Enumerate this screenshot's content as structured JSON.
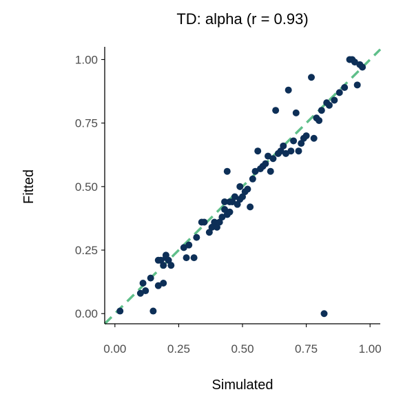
{
  "chart_data": {
    "type": "scatter",
    "title": "TD: alpha (r = 0.93)",
    "xlabel": "Simulated",
    "ylabel": "Fitted",
    "xlim": [
      -0.04,
      1.04
    ],
    "ylim": [
      -0.04,
      1.05
    ],
    "x_ticks": [
      0.0,
      0.25,
      0.5,
      0.75,
      1.0
    ],
    "x_tick_labels": [
      "0.00",
      "0.25",
      "0.50",
      "0.75",
      "1.00"
    ],
    "y_ticks": [
      0.0,
      0.25,
      0.5,
      0.75,
      1.0
    ],
    "y_tick_labels": [
      "0.00",
      "0.25",
      "0.50",
      "0.75",
      "1.00"
    ],
    "grid": false,
    "reference_line": {
      "intercept": 0,
      "slope": 1,
      "style": "dashed"
    },
    "colors": {
      "points": "#0d2f57",
      "reference_line": "#5fbf8a"
    },
    "points": [
      {
        "x": 0.02,
        "y": 0.01
      },
      {
        "x": 0.1,
        "y": 0.08
      },
      {
        "x": 0.11,
        "y": 0.12
      },
      {
        "x": 0.12,
        "y": 0.09
      },
      {
        "x": 0.14,
        "y": 0.14
      },
      {
        "x": 0.15,
        "y": 0.01
      },
      {
        "x": 0.17,
        "y": 0.11
      },
      {
        "x": 0.17,
        "y": 0.21
      },
      {
        "x": 0.18,
        "y": 0.21
      },
      {
        "x": 0.19,
        "y": 0.12
      },
      {
        "x": 0.19,
        "y": 0.19
      },
      {
        "x": 0.2,
        "y": 0.22
      },
      {
        "x": 0.2,
        "y": 0.23
      },
      {
        "x": 0.21,
        "y": 0.21
      },
      {
        "x": 0.22,
        "y": 0.19
      },
      {
        "x": 0.27,
        "y": 0.26
      },
      {
        "x": 0.28,
        "y": 0.22
      },
      {
        "x": 0.29,
        "y": 0.27
      },
      {
        "x": 0.31,
        "y": 0.22
      },
      {
        "x": 0.32,
        "y": 0.3
      },
      {
        "x": 0.34,
        "y": 0.36
      },
      {
        "x": 0.35,
        "y": 0.36
      },
      {
        "x": 0.37,
        "y": 0.32
      },
      {
        "x": 0.38,
        "y": 0.34
      },
      {
        "x": 0.39,
        "y": 0.36
      },
      {
        "x": 0.4,
        "y": 0.34
      },
      {
        "x": 0.41,
        "y": 0.36
      },
      {
        "x": 0.42,
        "y": 0.38
      },
      {
        "x": 0.43,
        "y": 0.41
      },
      {
        "x": 0.43,
        "y": 0.44
      },
      {
        "x": 0.44,
        "y": 0.39
      },
      {
        "x": 0.44,
        "y": 0.56
      },
      {
        "x": 0.45,
        "y": 0.4
      },
      {
        "x": 0.45,
        "y": 0.44
      },
      {
        "x": 0.46,
        "y": 0.44
      },
      {
        "x": 0.47,
        "y": 0.46
      },
      {
        "x": 0.48,
        "y": 0.43
      },
      {
        "x": 0.49,
        "y": 0.45
      },
      {
        "x": 0.49,
        "y": 0.5
      },
      {
        "x": 0.5,
        "y": 0.46
      },
      {
        "x": 0.51,
        "y": 0.48
      },
      {
        "x": 0.52,
        "y": 0.49
      },
      {
        "x": 0.53,
        "y": 0.42
      },
      {
        "x": 0.54,
        "y": 0.53
      },
      {
        "x": 0.55,
        "y": 0.56
      },
      {
        "x": 0.56,
        "y": 0.64
      },
      {
        "x": 0.57,
        "y": 0.57
      },
      {
        "x": 0.58,
        "y": 0.58
      },
      {
        "x": 0.59,
        "y": 0.59
      },
      {
        "x": 0.6,
        "y": 0.62
      },
      {
        "x": 0.61,
        "y": 0.56
      },
      {
        "x": 0.62,
        "y": 0.61
      },
      {
        "x": 0.63,
        "y": 0.8
      },
      {
        "x": 0.64,
        "y": 0.63
      },
      {
        "x": 0.65,
        "y": 0.64
      },
      {
        "x": 0.66,
        "y": 0.66
      },
      {
        "x": 0.67,
        "y": 0.63
      },
      {
        "x": 0.68,
        "y": 0.88
      },
      {
        "x": 0.69,
        "y": 0.64
      },
      {
        "x": 0.7,
        "y": 0.68
      },
      {
        "x": 0.71,
        "y": 0.79
      },
      {
        "x": 0.72,
        "y": 0.64
      },
      {
        "x": 0.73,
        "y": 0.67
      },
      {
        "x": 0.74,
        "y": 0.69
      },
      {
        "x": 0.75,
        "y": 0.7
      },
      {
        "x": 0.77,
        "y": 0.93
      },
      {
        "x": 0.78,
        "y": 0.69
      },
      {
        "x": 0.79,
        "y": 0.77
      },
      {
        "x": 0.8,
        "y": 0.76
      },
      {
        "x": 0.81,
        "y": 0.8
      },
      {
        "x": 0.82,
        "y": 0.0
      },
      {
        "x": 0.83,
        "y": 0.83
      },
      {
        "x": 0.84,
        "y": 0.82
      },
      {
        "x": 0.86,
        "y": 0.84
      },
      {
        "x": 0.88,
        "y": 0.87
      },
      {
        "x": 0.9,
        "y": 0.89
      },
      {
        "x": 0.92,
        "y": 1.0
      },
      {
        "x": 0.93,
        "y": 1.0
      },
      {
        "x": 0.94,
        "y": 0.99
      },
      {
        "x": 0.95,
        "y": 0.9
      },
      {
        "x": 0.96,
        "y": 0.98
      },
      {
        "x": 0.97,
        "y": 0.97
      }
    ]
  }
}
